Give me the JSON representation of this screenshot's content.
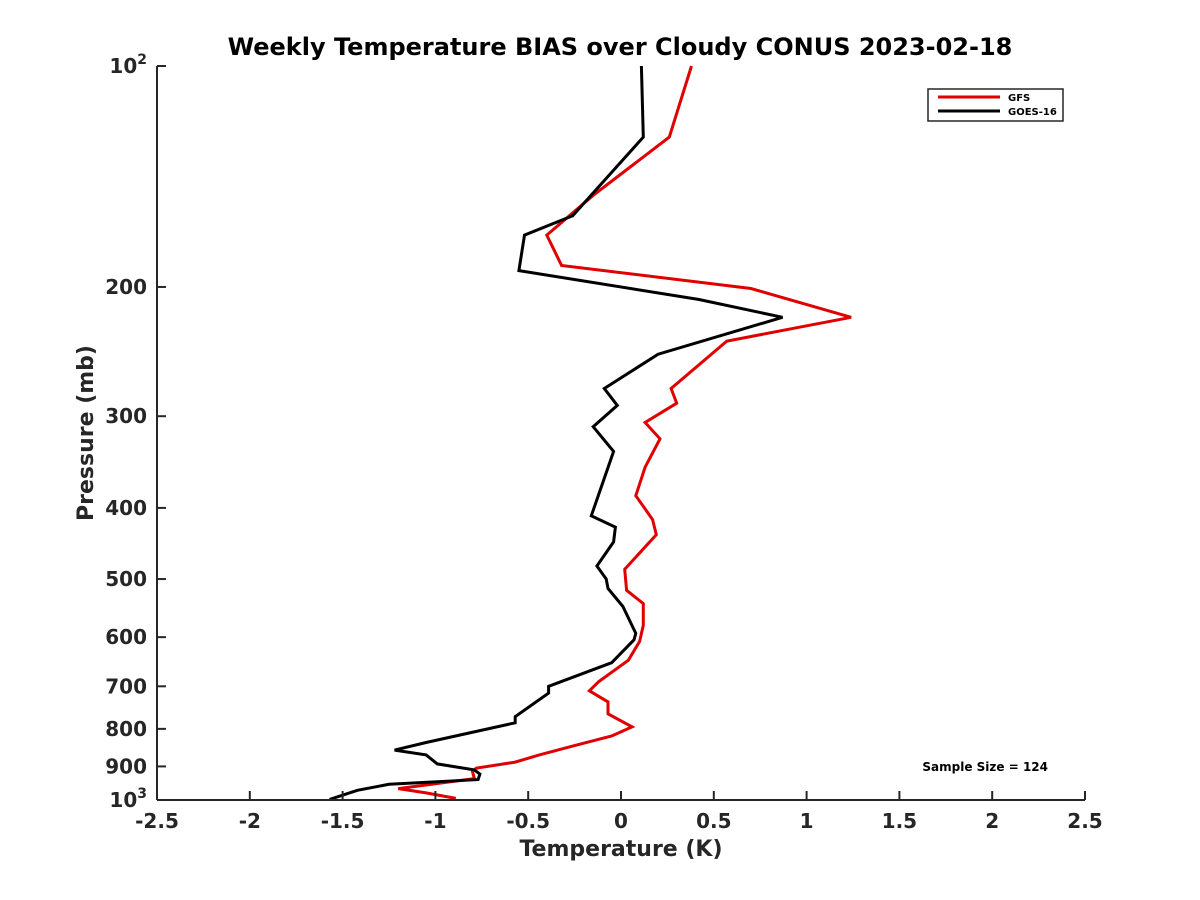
{
  "chart_data": {
    "type": "line",
    "title": "Weekly Temperature BIAS over Cloudy CONUS 2023-02-18",
    "xlabel": "Temperature (K)",
    "ylabel": "Pressure (mb)",
    "xlim": [
      -2.5,
      2.5
    ],
    "ylim": [
      100,
      1000
    ],
    "y_scale": "log",
    "y_reversed": true,
    "grid": false,
    "legend_position": "top-right",
    "x_ticks": [
      "-2.5",
      "-2",
      "-1.5",
      "-1",
      "-0.5",
      "0",
      "0.5",
      "1",
      "1.5",
      "2",
      "2.5"
    ],
    "y_ticks": [
      {
        "value": 100,
        "base": "10",
        "exp": "2"
      },
      {
        "value": 200,
        "label": "200"
      },
      {
        "value": 300,
        "label": "300"
      },
      {
        "value": 400,
        "label": "400"
      },
      {
        "value": 500,
        "label": "500"
      },
      {
        "value": 600,
        "label": "600"
      },
      {
        "value": 700,
        "label": "700"
      },
      {
        "value": 800,
        "label": "800"
      },
      {
        "value": 900,
        "label": "900"
      },
      {
        "value": 1000,
        "base": "10",
        "exp": "3"
      }
    ],
    "series": [
      {
        "name": "GFS",
        "color": "#e00000",
        "points": [
          [
            0.38,
            100
          ],
          [
            0.26,
            125
          ],
          [
            -0.15,
            150
          ],
          [
            -0.4,
            170
          ],
          [
            -0.32,
            187
          ],
          [
            0.7,
            201
          ],
          [
            1.24,
            220
          ],
          [
            0.57,
            237
          ],
          [
            0.27,
            275
          ],
          [
            0.3,
            288
          ],
          [
            0.13,
            306
          ],
          [
            0.21,
            322
          ],
          [
            0.13,
            352
          ],
          [
            0.08,
            385
          ],
          [
            0.17,
            415
          ],
          [
            0.19,
            435
          ],
          [
            0.02,
            485
          ],
          [
            0.03,
            518
          ],
          [
            0.12,
            540
          ],
          [
            0.12,
            578
          ],
          [
            0.1,
            608
          ],
          [
            0.04,
            645
          ],
          [
            -0.12,
            690
          ],
          [
            -0.17,
            710
          ],
          [
            -0.07,
            735
          ],
          [
            -0.07,
            763
          ],
          [
            0.06,
            795
          ],
          [
            -0.05,
            818
          ],
          [
            -0.25,
            843
          ],
          [
            -0.44,
            868
          ],
          [
            -0.57,
            888
          ],
          [
            -0.78,
            905
          ],
          [
            -0.8,
            915
          ],
          [
            -0.79,
            935
          ],
          [
            -1.2,
            965
          ],
          [
            -1.05,
            978
          ],
          [
            -0.89,
            995
          ]
        ]
      },
      {
        "name": "GOES-16",
        "color": "#000000",
        "points": [
          [
            0.11,
            100
          ],
          [
            0.12,
            125
          ],
          [
            -0.26,
            160
          ],
          [
            -0.52,
            170
          ],
          [
            -0.55,
            190
          ],
          [
            0.42,
            208
          ],
          [
            0.87,
            220
          ],
          [
            0.2,
            247
          ],
          [
            -0.09,
            275
          ],
          [
            -0.02,
            290
          ],
          [
            -0.15,
            310
          ],
          [
            -0.04,
            335
          ],
          [
            -0.16,
            410
          ],
          [
            -0.03,
            425
          ],
          [
            -0.04,
            445
          ],
          [
            -0.13,
            480
          ],
          [
            -0.08,
            500
          ],
          [
            -0.07,
            515
          ],
          [
            0.01,
            545
          ],
          [
            0.08,
            593
          ],
          [
            0.07,
            605
          ],
          [
            -0.05,
            650
          ],
          [
            -0.39,
            700
          ],
          [
            -0.39,
            715
          ],
          [
            -0.57,
            770
          ],
          [
            -0.57,
            785
          ],
          [
            -1.05,
            835
          ],
          [
            -1.22,
            855
          ],
          [
            -1.05,
            868
          ],
          [
            -0.99,
            893
          ],
          [
            -0.79,
            910
          ],
          [
            -0.76,
            922
          ],
          [
            -0.77,
            938
          ],
          [
            -1.25,
            952
          ],
          [
            -1.42,
            970
          ],
          [
            -1.57,
            998
          ]
        ]
      }
    ],
    "annotation": "Sample Size = 124"
  }
}
